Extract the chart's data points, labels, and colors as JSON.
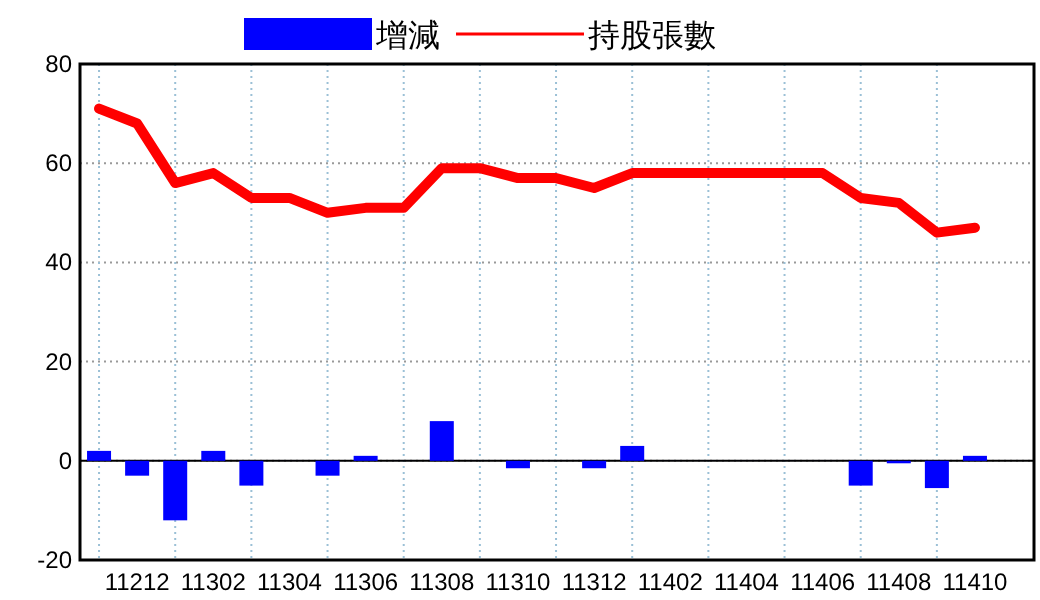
{
  "chart_data": {
    "type": "bar",
    "categories": [
      null,
      "11212",
      null,
      "11302",
      null,
      "11304",
      null,
      "11306",
      null,
      "11308",
      null,
      "11310",
      null,
      "11312",
      null,
      "11402",
      null,
      "11404",
      null,
      "11406",
      null,
      "11408",
      null,
      "11410"
    ],
    "series": [
      {
        "name": "增減",
        "color": "#0000ff",
        "values": [
          2,
          -3,
          -12,
          2,
          -5,
          0,
          -3,
          1,
          0,
          8,
          0,
          -1.5,
          0,
          -1.5,
          3,
          0,
          0,
          0,
          0,
          0,
          -5,
          -0.5,
          -5.5,
          1
        ]
      },
      {
        "name": "持股張數",
        "type": "line",
        "color": "#ff0000",
        "values": [
          71,
          68,
          56,
          58,
          53,
          53,
          50,
          51,
          51,
          59,
          59,
          57,
          57,
          55,
          58,
          58,
          58,
          58,
          58,
          58,
          53,
          52,
          46,
          47
        ]
      }
    ],
    "ylim": [
      -20,
      80
    ],
    "yticks": [
      -20,
      0,
      20,
      40,
      60,
      80
    ],
    "grid": true,
    "legend": "top"
  }
}
